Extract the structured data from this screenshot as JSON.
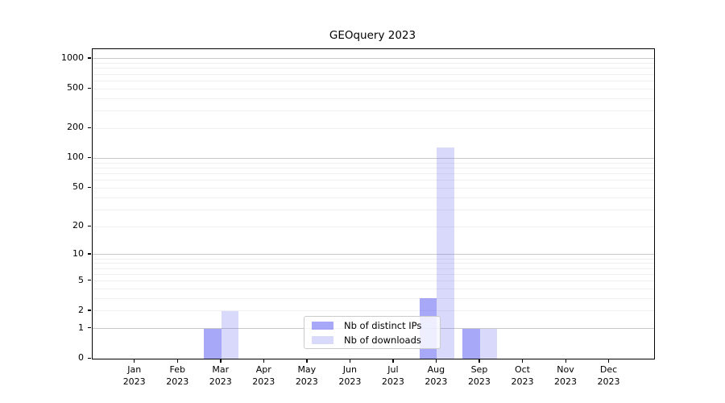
{
  "chart_data": {
    "type": "bar",
    "title": "GEOquery 2023",
    "categories": [
      "Jan 2023",
      "Feb 2023",
      "Mar 2023",
      "Apr 2023",
      "May 2023",
      "Jun 2023",
      "Jul 2023",
      "Aug 2023",
      "Sep 2023",
      "Oct 2023",
      "Nov 2023",
      "Dec 2023"
    ],
    "series": [
      {
        "name": "Nb of distinct IPs",
        "color": "rgba(101,102,241,0.57)",
        "color_hex_on_white": "#a8a9f7",
        "values": [
          0,
          0,
          1,
          0,
          0,
          0,
          0,
          3,
          1,
          0,
          0,
          0
        ]
      },
      {
        "name": "Nb of downloads",
        "color": "rgba(101,102,241,0.25)",
        "color_hex_on_white": "#d8d9fb",
        "values": [
          0,
          0,
          2,
          0,
          0,
          0,
          0,
          130,
          1,
          0,
          0,
          0
        ]
      }
    ],
    "yscale": "log1p",
    "ylim": [
      0,
      1270
    ],
    "yticks": [
      0,
      1,
      2,
      5,
      10,
      20,
      50,
      100,
      200,
      500,
      1000
    ],
    "minor_gridlines": [
      2,
      3,
      4,
      5,
      6,
      7,
      8,
      9,
      20,
      30,
      40,
      50,
      60,
      70,
      80,
      90,
      200,
      300,
      400,
      500,
      600,
      700,
      800,
      900
    ],
    "major_gridlines": [
      1,
      10,
      100,
      1000
    ],
    "grid": "on",
    "legend_position": "lower center (inside plot)"
  },
  "colors": {
    "background": "#ffffff",
    "axis": "#000000",
    "major_grid": "#c9c9c9",
    "minor_grid": "#efefef",
    "legend_border": "#cbcbcb"
  }
}
